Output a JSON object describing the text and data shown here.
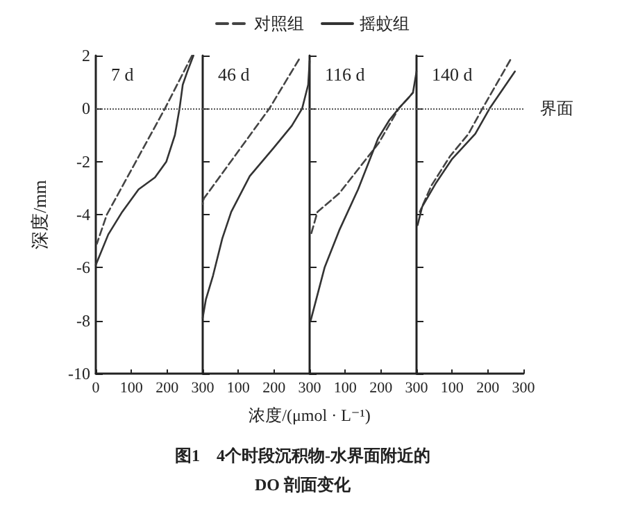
{
  "chart_data": [
    {
      "type": "line",
      "title": "7 d",
      "ylabel": "深度/mm",
      "xlabel": "浓度/(μmol · L⁻¹)",
      "legend": "top",
      "grid": false,
      "marker": "none",
      "xlim": [
        0,
        300
      ],
      "xticks": [
        0,
        100,
        200,
        300
      ],
      "ylim": [
        -10,
        2
      ],
      "yticks": [
        -10,
        -8,
        -6,
        -4,
        -2,
        0,
        2
      ],
      "annotations": [
        "图1　4个时段沉积物-水界面附近的",
        "DO 剖面变化"
      ],
      "ref_lines": [
        {
          "axis": "y",
          "value": 0,
          "label": null,
          "line_style": "dotted"
        }
      ],
      "series": [
        {
          "name": "对照组",
          "color": "#444444",
          "line_style": "dashed",
          "x": [
            270,
            194,
            31,
            3
          ],
          "values": [
            2,
            0,
            -4,
            -5.1
          ]
        },
        {
          "name": "摇蚊组",
          "color": "#333333",
          "line_style": "solid",
          "x": [
            274,
            257,
            244,
            235,
            222,
            198,
            166,
            120,
            74,
            35,
            0
          ],
          "values": [
            2,
            1.4,
            0.9,
            0,
            -1,
            -2,
            -2.6,
            -3.05,
            -3.9,
            -4.75,
            -5.9
          ]
        }
      ]
    },
    {
      "type": "line",
      "title": "46 d",
      "grid": false,
      "marker": "none",
      "tick_labels": "x",
      "xlim": [
        0,
        300
      ],
      "xticks": [
        100,
        200,
        300
      ],
      "ylim": [
        -10,
        2
      ],
      "yticks": [
        -10,
        -8,
        -6,
        -4,
        -2,
        0,
        2
      ],
      "ref_lines": [
        {
          "axis": "y",
          "value": 0,
          "label": null,
          "line_style": "dotted"
        }
      ],
      "series": [
        {
          "name": "对照组",
          "color": "#444444",
          "line_style": "dashed",
          "x": [
            270,
            187,
            3,
            0
          ],
          "values": [
            1.85,
            0,
            -3.4,
            -3.6
          ]
        },
        {
          "name": "摇蚊组",
          "color": "#333333",
          "line_style": "solid",
          "x": [
            300,
            296,
            279,
            250,
            198,
            132,
            80,
            55,
            29,
            9,
            0
          ],
          "values": [
            1.8,
            0.9,
            0,
            -0.65,
            -1.5,
            -2.55,
            -3.9,
            -4.9,
            -6.3,
            -7.2,
            -7.9
          ]
        }
      ]
    },
    {
      "type": "line",
      "title": "116 d",
      "grid": false,
      "marker": "none",
      "tick_labels": "x",
      "xlim": [
        0,
        300
      ],
      "xticks": [
        100,
        200,
        300
      ],
      "ylim": [
        -10,
        2
      ],
      "yticks": [
        -10,
        -8,
        -6,
        -4,
        -2,
        0,
        2
      ],
      "ref_lines": [
        {
          "axis": "y",
          "value": 0,
          "label": null,
          "line_style": "dotted"
        }
      ],
      "series": [
        {
          "name": "对照组",
          "color": "#444444",
          "line_style": "dashed",
          "x": [
            5,
            22,
            83,
            194,
            250,
            290
          ],
          "values": [
            -4.7,
            -3.9,
            -3.2,
            -1.3,
            0,
            0.6
          ]
        },
        {
          "name": "摇蚊组",
          "color": "#333333",
          "line_style": "solid",
          "x": [
            3,
            42,
            83,
            136,
            192,
            224,
            253,
            274,
            290,
            300
          ],
          "values": [
            -8,
            -6,
            -4.6,
            -3.05,
            -1.13,
            -0.43,
            0.05,
            0.35,
            0.6,
            1.4
          ]
        }
      ]
    },
    {
      "type": "line",
      "title": "140 d",
      "grid": false,
      "marker": "none",
      "tick_labels": "x",
      "xlim": [
        0,
        300
      ],
      "xticks": [
        100,
        200,
        300
      ],
      "ylim": [
        -10,
        2
      ],
      "yticks": [
        -10,
        -8,
        -6,
        -4,
        -2,
        0,
        2
      ],
      "ref_lines": [
        {
          "axis": "y",
          "value": 0,
          "label": "界面",
          "line_style": "dotted"
        }
      ],
      "series": [
        {
          "name": "对照组",
          "color": "#444444",
          "line_style": "dashed",
          "x": [
            263,
            185,
            146,
            94,
            42,
            9
          ],
          "values": [
            1.83,
            0,
            -0.95,
            -1.8,
            -2.9,
            -3.9
          ]
        },
        {
          "name": "摇蚊组",
          "color": "#333333",
          "line_style": "solid",
          "x": [
            276,
            205,
            165,
            100,
            55,
            16,
            3
          ],
          "values": [
            1.4,
            0,
            -0.95,
            -1.9,
            -2.8,
            -3.7,
            -4.4
          ]
        }
      ]
    }
  ]
}
